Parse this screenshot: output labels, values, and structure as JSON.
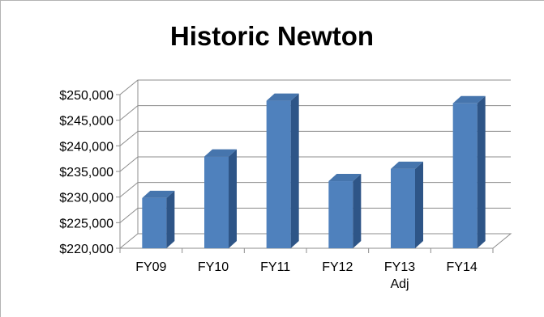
{
  "chart_data": {
    "type": "bar",
    "style": "3d-column",
    "title": "Historic Newton",
    "xlabel": "",
    "ylabel": "",
    "categories": [
      "FY09",
      "FY10",
      "FY11",
      "FY12",
      "FY13 Adj",
      "FY14"
    ],
    "category_lines": [
      [
        "FY09"
      ],
      [
        "FY10"
      ],
      [
        "FY11"
      ],
      [
        "FY12"
      ],
      [
        "FY13",
        "Adj"
      ],
      [
        "FY14"
      ]
    ],
    "values": [
      229800,
      237900,
      248800,
      233100,
      235500,
      248300
    ],
    "ylim": [
      220000,
      250000
    ],
    "ytick_step": 5000,
    "ytick_labels": [
      "$220,000",
      "$225,000",
      "$230,000",
      "$235,000",
      "$240,000",
      "$245,000",
      "$250,000"
    ],
    "grid": true,
    "legend": "none",
    "colors": {
      "bar_front": "#4f81bd",
      "bar_side": "#2e5587",
      "bar_top": "#4675ad",
      "grid": "#8c8c8c",
      "text": "#000000"
    }
  }
}
